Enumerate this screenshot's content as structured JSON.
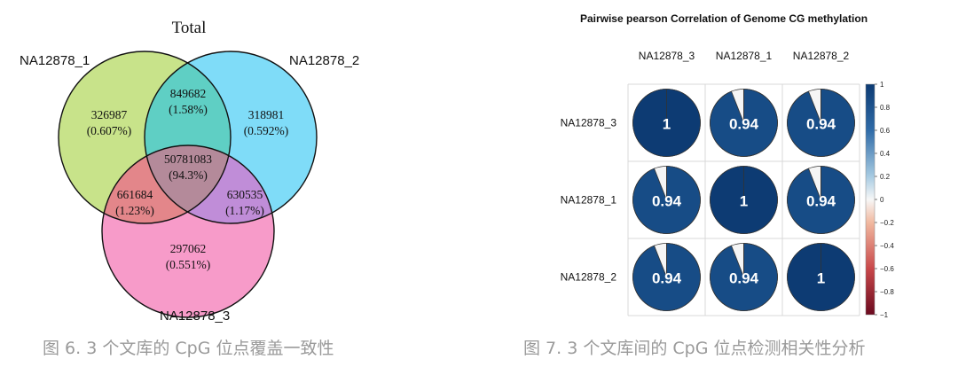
{
  "chart_data": [
    {
      "type": "venn",
      "title": "Total",
      "sets": [
        "NA12878_1",
        "NA12878_2",
        "NA12878_3"
      ],
      "colors": {
        "NA12878_1": "#c8e38a",
        "NA12878_2": "#7fdcf8",
        "NA12878_3": "#f79bc9"
      },
      "regions": [
        {
          "sets": [
            "NA12878_1"
          ],
          "count": "326987",
          "percent": "(0.607%)"
        },
        {
          "sets": [
            "NA12878_2"
          ],
          "count": "318981",
          "percent": "(0.592%)"
        },
        {
          "sets": [
            "NA12878_3"
          ],
          "count": "297062",
          "percent": "(0.551%)"
        },
        {
          "sets": [
            "NA12878_1",
            "NA12878_2"
          ],
          "count": "849682",
          "percent": "(1.58%)"
        },
        {
          "sets": [
            "NA12878_1",
            "NA12878_3"
          ],
          "count": "661684",
          "percent": "(1.23%)"
        },
        {
          "sets": [
            "NA12878_2",
            "NA12878_3"
          ],
          "count": "630535",
          "percent": "(1.17%)"
        },
        {
          "sets": [
            "NA12878_1",
            "NA12878_2",
            "NA12878_3"
          ],
          "count": "50781083",
          "percent": "(94.3%)"
        }
      ]
    },
    {
      "type": "heatmap",
      "subtype": "correlation-pie-matrix",
      "title": "Pairwise pearson Correlation of Genome CG methylation",
      "columns": [
        "NA12878_3",
        "NA12878_1",
        "NA12878_2"
      ],
      "rows": [
        "NA12878_3",
        "NA12878_1",
        "NA12878_2"
      ],
      "values": [
        [
          1,
          0.94,
          0.94
        ],
        [
          0.94,
          1,
          0.94
        ],
        [
          0.94,
          0.94,
          1
        ]
      ],
      "labels": [
        [
          "1",
          "0.94",
          "0.94"
        ],
        [
          "0.94",
          "1",
          "0.94"
        ],
        [
          "0.94",
          "0.94",
          "1"
        ]
      ],
      "colorbar": {
        "ticks": [
          "1",
          "0.8",
          "0.6",
          "0.4",
          "0.2",
          "0",
          "−0.2",
          "−0.4",
          "−0.6",
          "−0.8",
          "−1"
        ],
        "range": [
          -1,
          1
        ],
        "high_color": "#0d3b73",
        "mid_color": "#f7f7f7",
        "low_color": "#6b0a1f"
      }
    }
  ],
  "captions": {
    "venn": "图 6. 3 个文库的 CpG 位点覆盖一致性",
    "corr": "图 7. 3 个文库间的 CpG 位点检测相关性分析"
  }
}
